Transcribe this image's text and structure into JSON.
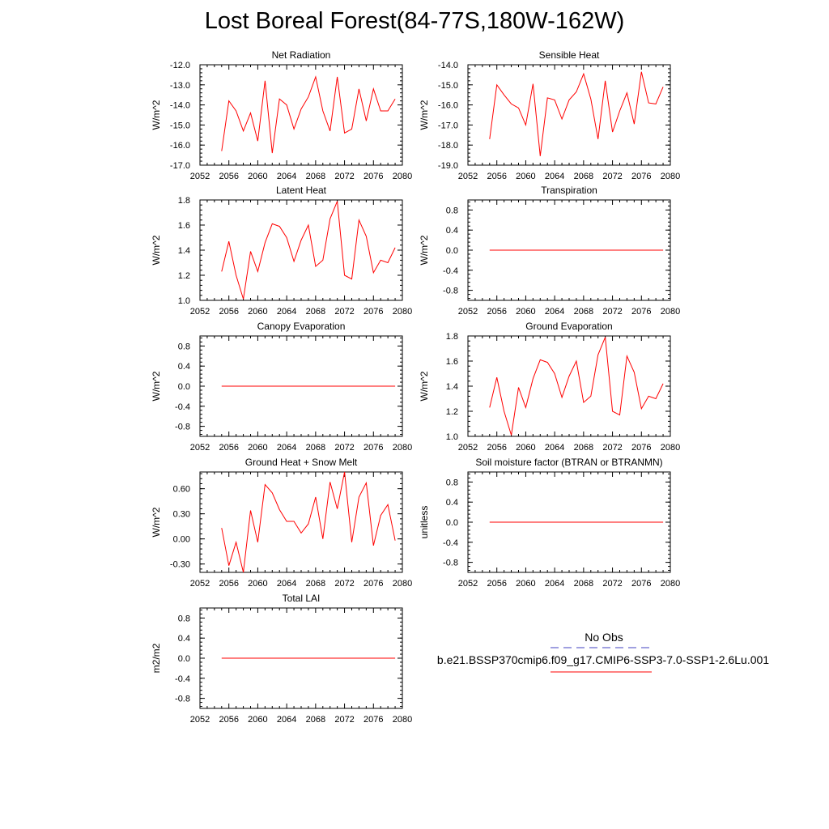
{
  "title": "Lost Boreal Forest(84-77S,180W-162W)",
  "colors": {
    "model_line": "#ff0000",
    "obs_line": "#4040c0",
    "axis": "#000000"
  },
  "legend": {
    "obs_label": "No Obs",
    "model_label": "b.e21.BSSP370cmip6.f09_g17.CMIP6-SSP3-7.0-SSP1-2.6Lu.001"
  },
  "chart_data": [
    {
      "type": "line",
      "title": "Net Radiation",
      "ylabel": "W/m^2",
      "xlim": [
        2052,
        2080
      ],
      "ylim": [
        -17.0,
        -12.0
      ],
      "xticks": [
        "2052",
        "2056",
        "2060",
        "2064",
        "2068",
        "2072",
        "2076",
        "2080"
      ],
      "yticks": [
        "-17.0",
        "-16.0",
        "-15.0",
        "-14.0",
        "-13.0",
        "-12.0"
      ],
      "x": [
        2055,
        2056,
        2057,
        2058,
        2059,
        2060,
        2061,
        2062,
        2063,
        2064,
        2065,
        2066,
        2067,
        2068,
        2069,
        2070,
        2071,
        2072,
        2073,
        2074,
        2075,
        2076,
        2077,
        2078,
        2079
      ],
      "series": [
        {
          "values": [
            -16.3,
            -13.8,
            -14.3,
            -15.3,
            -14.4,
            -15.8,
            -12.8,
            -16.4,
            -13.7,
            -14.0,
            -15.2,
            -14.2,
            -13.6,
            -12.6,
            -14.3,
            -15.3,
            -12.6,
            -15.4,
            -15.2,
            -13.2,
            -14.8,
            -13.2,
            -14.3,
            -14.3,
            -13.7
          ]
        }
      ]
    },
    {
      "type": "line",
      "title": "Sensible Heat",
      "ylabel": "W/m^2",
      "xlim": [
        2052,
        2080
      ],
      "ylim": [
        -19.0,
        -14.0
      ],
      "xticks": [
        "2052",
        "2056",
        "2060",
        "2064",
        "2068",
        "2072",
        "2076",
        "2080"
      ],
      "yticks": [
        "-19.0",
        "-18.0",
        "-17.0",
        "-16.0",
        "-15.0",
        "-14.0"
      ],
      "x": [
        2055,
        2056,
        2057,
        2058,
        2059,
        2060,
        2061,
        2062,
        2063,
        2064,
        2065,
        2066,
        2067,
        2068,
        2069,
        2070,
        2071,
        2072,
        2073,
        2074,
        2075,
        2076,
        2077,
        2078,
        2079
      ],
      "series": [
        {
          "values": [
            -17.7,
            -15.0,
            -15.5,
            -15.95,
            -16.15,
            -17.0,
            -14.95,
            -18.55,
            -15.65,
            -15.75,
            -16.7,
            -15.75,
            -15.35,
            -14.45,
            -15.7,
            -17.7,
            -14.8,
            -17.35,
            -16.3,
            -15.4,
            -16.95,
            -14.35,
            -15.9,
            -15.95,
            -15.1
          ]
        }
      ]
    },
    {
      "type": "line",
      "title": "Latent Heat",
      "ylabel": "W/m^2",
      "xlim": [
        2052,
        2080
      ],
      "ylim": [
        1.0,
        1.8
      ],
      "xticks": [
        "2052",
        "2056",
        "2060",
        "2064",
        "2068",
        "2072",
        "2076",
        "2080"
      ],
      "yticks": [
        "1.0",
        "1.2",
        "1.4",
        "1.6",
        "1.8"
      ],
      "x": [
        2055,
        2056,
        2057,
        2058,
        2059,
        2060,
        2061,
        2062,
        2063,
        2064,
        2065,
        2066,
        2067,
        2068,
        2069,
        2070,
        2071,
        2072,
        2073,
        2074,
        2075,
        2076,
        2077,
        2078,
        2079
      ],
      "series": [
        {
          "values": [
            1.23,
            1.47,
            1.2,
            1.01,
            1.39,
            1.23,
            1.46,
            1.61,
            1.59,
            1.5,
            1.31,
            1.48,
            1.6,
            1.27,
            1.32,
            1.65,
            1.79,
            1.2,
            1.17,
            1.64,
            1.51,
            1.22,
            1.32,
            1.3,
            1.42
          ]
        }
      ]
    },
    {
      "type": "line",
      "title": "Transpiration",
      "ylabel": "W/m^2",
      "xlim": [
        2052,
        2080
      ],
      "ylim": [
        -1.0,
        1.0
      ],
      "xticks": [
        "2052",
        "2056",
        "2060",
        "2064",
        "2068",
        "2072",
        "2076",
        "2080"
      ],
      "yticks": [
        "-0.8",
        "-0.4",
        "0.0",
        "0.4",
        "0.8"
      ],
      "x": [
        2055,
        2056,
        2057,
        2058,
        2059,
        2060,
        2061,
        2062,
        2063,
        2064,
        2065,
        2066,
        2067,
        2068,
        2069,
        2070,
        2071,
        2072,
        2073,
        2074,
        2075,
        2076,
        2077,
        2078,
        2079
      ],
      "series": [
        {
          "values": [
            0,
            0,
            0,
            0,
            0,
            0,
            0,
            0,
            0,
            0,
            0,
            0,
            0,
            0,
            0,
            0,
            0,
            0,
            0,
            0,
            0,
            0,
            0,
            0,
            0
          ]
        }
      ]
    },
    {
      "type": "line",
      "title": "Canopy Evaporation",
      "ylabel": "W/m^2",
      "xlim": [
        2052,
        2080
      ],
      "ylim": [
        -1.0,
        1.0
      ],
      "xticks": [
        "2052",
        "2056",
        "2060",
        "2064",
        "2068",
        "2072",
        "2076",
        "2080"
      ],
      "yticks": [
        "-0.8",
        "-0.4",
        "0.0",
        "0.4",
        "0.8"
      ],
      "x": [
        2055,
        2056,
        2057,
        2058,
        2059,
        2060,
        2061,
        2062,
        2063,
        2064,
        2065,
        2066,
        2067,
        2068,
        2069,
        2070,
        2071,
        2072,
        2073,
        2074,
        2075,
        2076,
        2077,
        2078,
        2079
      ],
      "series": [
        {
          "values": [
            0,
            0,
            0,
            0,
            0,
            0,
            0,
            0,
            0,
            0,
            0,
            0,
            0,
            0,
            0,
            0,
            0,
            0,
            0,
            0,
            0,
            0,
            0,
            0,
            0
          ]
        }
      ]
    },
    {
      "type": "line",
      "title": "Ground Evaporation",
      "ylabel": "W/m^2",
      "xlim": [
        2052,
        2080
      ],
      "ylim": [
        1.0,
        1.8
      ],
      "xticks": [
        "2052",
        "2056",
        "2060",
        "2064",
        "2068",
        "2072",
        "2076",
        "2080"
      ],
      "yticks": [
        "1.0",
        "1.2",
        "1.4",
        "1.6",
        "1.8"
      ],
      "x": [
        2055,
        2056,
        2057,
        2058,
        2059,
        2060,
        2061,
        2062,
        2063,
        2064,
        2065,
        2066,
        2067,
        2068,
        2069,
        2070,
        2071,
        2072,
        2073,
        2074,
        2075,
        2076,
        2077,
        2078,
        2079
      ],
      "series": [
        {
          "values": [
            1.23,
            1.47,
            1.2,
            1.01,
            1.39,
            1.23,
            1.46,
            1.61,
            1.59,
            1.5,
            1.31,
            1.48,
            1.6,
            1.27,
            1.32,
            1.65,
            1.79,
            1.2,
            1.17,
            1.64,
            1.51,
            1.22,
            1.32,
            1.3,
            1.42
          ]
        }
      ]
    },
    {
      "type": "line",
      "title": "Ground Heat + Snow Melt",
      "ylabel": "W/m^2",
      "xlim": [
        2052,
        2080
      ],
      "ylim": [
        -0.4,
        0.8
      ],
      "xticks": [
        "2052",
        "2056",
        "2060",
        "2064",
        "2068",
        "2072",
        "2076",
        "2080"
      ],
      "yticks": [
        "-0.30",
        "0.00",
        "0.30",
        "0.60"
      ],
      "x": [
        2055,
        2056,
        2057,
        2058,
        2059,
        2060,
        2061,
        2062,
        2063,
        2064,
        2065,
        2066,
        2067,
        2068,
        2069,
        2070,
        2071,
        2072,
        2073,
        2074,
        2075,
        2076,
        2077,
        2078,
        2079
      ],
      "series": [
        {
          "values": [
            0.13,
            -0.32,
            -0.04,
            -0.4,
            0.34,
            -0.04,
            0.65,
            0.55,
            0.35,
            0.21,
            0.21,
            0.07,
            0.18,
            0.5,
            0.0,
            0.68,
            0.36,
            0.8,
            -0.04,
            0.5,
            0.67,
            -0.08,
            0.28,
            0.41,
            -0.02
          ]
        }
      ]
    },
    {
      "type": "line",
      "title": "Soil moisture factor (BTRAN or BTRANMN)",
      "ylabel": "unitless",
      "xlim": [
        2052,
        2080
      ],
      "ylim": [
        -1.0,
        1.0
      ],
      "xticks": [
        "2052",
        "2056",
        "2060",
        "2064",
        "2068",
        "2072",
        "2076",
        "2080"
      ],
      "yticks": [
        "-0.8",
        "-0.4",
        "0.0",
        "0.4",
        "0.8"
      ],
      "x": [
        2055,
        2056,
        2057,
        2058,
        2059,
        2060,
        2061,
        2062,
        2063,
        2064,
        2065,
        2066,
        2067,
        2068,
        2069,
        2070,
        2071,
        2072,
        2073,
        2074,
        2075,
        2076,
        2077,
        2078,
        2079
      ],
      "series": [
        {
          "values": [
            0,
            0,
            0,
            0,
            0,
            0,
            0,
            0,
            0,
            0,
            0,
            0,
            0,
            0,
            0,
            0,
            0,
            0,
            0,
            0,
            0,
            0,
            0,
            0,
            0
          ]
        }
      ]
    },
    {
      "type": "line",
      "title": "Total LAI",
      "ylabel": "m2/m2",
      "xlim": [
        2052,
        2080
      ],
      "ylim": [
        -1.0,
        1.0
      ],
      "xticks": [
        "2052",
        "2056",
        "2060",
        "2064",
        "2068",
        "2072",
        "2076",
        "2080"
      ],
      "yticks": [
        "-0.8",
        "-0.4",
        "0.0",
        "0.4",
        "0.8"
      ],
      "x": [
        2055,
        2056,
        2057,
        2058,
        2059,
        2060,
        2061,
        2062,
        2063,
        2064,
        2065,
        2066,
        2067,
        2068,
        2069,
        2070,
        2071,
        2072,
        2073,
        2074,
        2075,
        2076,
        2077,
        2078,
        2079
      ],
      "series": [
        {
          "values": [
            0,
            0,
            0,
            0,
            0,
            0,
            0,
            0,
            0,
            0,
            0,
            0,
            0,
            0,
            0,
            0,
            0,
            0,
            0,
            0,
            0,
            0,
            0,
            0,
            0
          ]
        }
      ]
    }
  ]
}
